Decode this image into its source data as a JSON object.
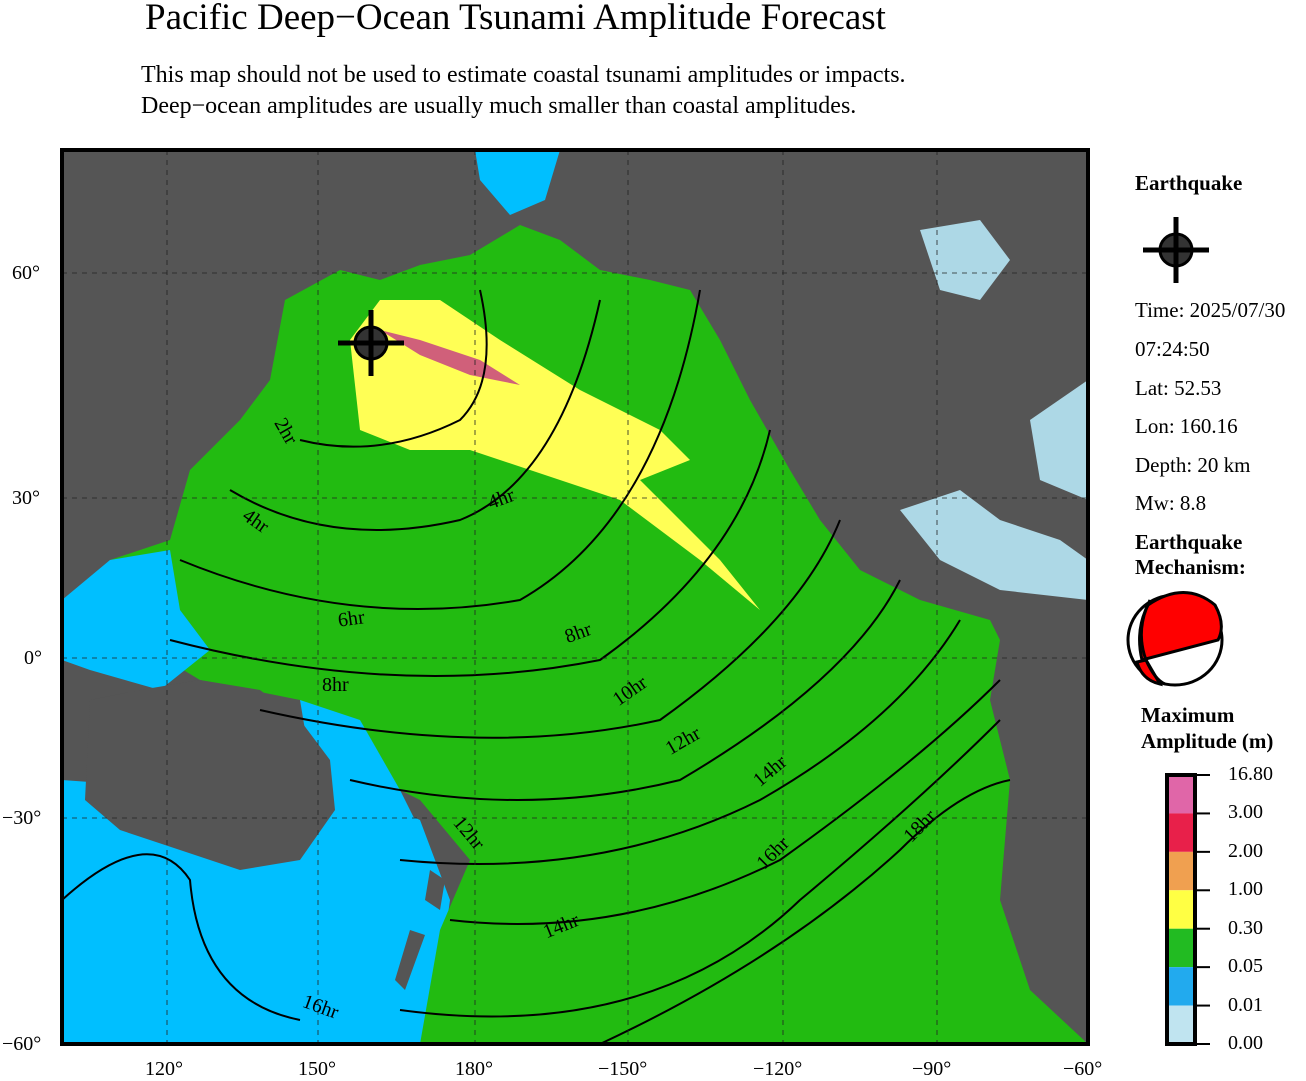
{
  "title": "Pacific Deep−Ocean Tsunami Amplitude Forecast",
  "subtitle_lines": [
    "This map should not be used to estimate coastal tsunami amplitudes or impacts.",
    "Deep−ocean amplitudes are usually much smaller than coastal amplitudes."
  ],
  "map": {
    "lon_ticks": [
      "120°",
      "150°",
      "180°",
      "−150°",
      "−120°",
      "−90°",
      "−60°"
    ],
    "lat_ticks": [
      "60°",
      "30°",
      "0°",
      "−30°",
      "−60°"
    ],
    "travel_time_labels": [
      "2hr",
      "4hr",
      "4hr",
      "6hr",
      "8hr",
      "8hr",
      "10hr",
      "12hr",
      "12hr",
      "14hr",
      "14hr",
      "16hr",
      "16hr",
      "18hr"
    ],
    "epicenter_icon": "crosshair-circle-icon",
    "colors": {
      "land": "#555555",
      "ocean_low": "#00bfff",
      "ocean_mid": "#22bb11",
      "ocean_high": "#ffff55",
      "lakes": "#add8e6"
    }
  },
  "earthquake": {
    "heading": "Earthquake",
    "icon": "crosshair-circle-icon",
    "time": "Time: 2025/07/30",
    "clock": "07:24:50",
    "lat": "Lat: 52.53",
    "lon": "Lon: 160.16",
    "depth": "Depth: 20 km",
    "mw": "Mw: 8.8",
    "mechanism_heading_1": "Earthquake",
    "mechanism_heading_2": "Mechanism:",
    "mechanism_icon": "beachball-icon"
  },
  "legend": {
    "heading_1": "Maximum",
    "heading_2": "Amplitude (m)",
    "labels": [
      "16.80",
      "3.00",
      "2.00",
      "1.00",
      "0.30",
      "0.05",
      "0.01",
      "0.00"
    ],
    "colors": [
      "#e066a8",
      "#e8204a",
      "#f0a050",
      "#ffff44",
      "#22bb22",
      "#22aaee",
      "#c0e4f0"
    ]
  }
}
